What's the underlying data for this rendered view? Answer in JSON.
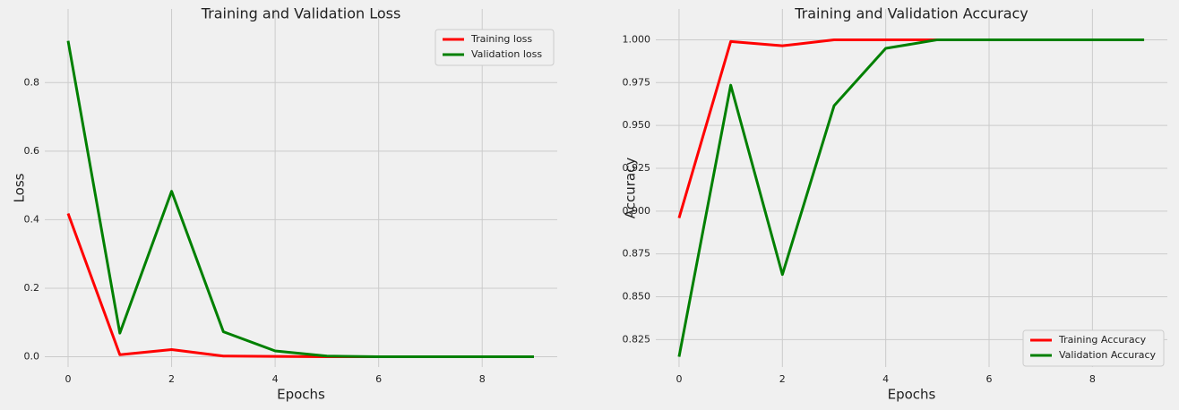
{
  "chart_data": [
    {
      "type": "line",
      "title": "Training and Validation Loss",
      "xlabel": "Epochs",
      "ylabel": "Loss",
      "x": [
        0,
        1,
        2,
        3,
        4,
        5,
        6,
        7,
        8,
        9
      ],
      "series": [
        {
          "name": "Training loss",
          "color": "#ff0000",
          "values": [
            0.418,
            0.006,
            0.021,
            0.002,
            0.001,
            0.0,
            0.0,
            0.0,
            0.0,
            0.0
          ]
        },
        {
          "name": "Validation loss",
          "color": "#008000",
          "values": [
            0.922,
            0.069,
            0.483,
            0.073,
            0.017,
            0.002,
            0.0,
            0.0,
            0.0,
            0.0
          ]
        }
      ],
      "xlim": [
        -0.45,
        9.45
      ],
      "xticks": [
        0,
        2,
        4,
        6,
        8
      ],
      "ylim": [
        -0.03,
        1.015
      ],
      "yticks": [
        {
          "value": 0,
          "label": "0.0"
        },
        0.2,
        0.4,
        0.6,
        0.8
      ],
      "grid": true,
      "legend": "upper-right"
    },
    {
      "type": "line",
      "title": "Training and Validation Accuracy",
      "xlabel": "Epochs",
      "ylabel": "Accuracy",
      "x": [
        0,
        1,
        2,
        3,
        4,
        5,
        6,
        7,
        8,
        9
      ],
      "series": [
        {
          "name": "Training Accuracy",
          "color": "#ff0000",
          "values": [
            0.896,
            0.999,
            0.9965,
            1.0,
            1.0,
            1.0,
            1.0,
            1.0,
            1.0,
            1.0
          ]
        },
        {
          "name": "Validation Accuracy",
          "color": "#008000",
          "values": [
            0.815,
            0.9735,
            0.863,
            0.9615,
            0.995,
            1.0,
            1.0,
            1.0,
            1.0,
            1.0
          ]
        }
      ],
      "xlim": [
        -0.45,
        9.45
      ],
      "xticks": [
        0,
        2,
        4,
        6,
        8
      ],
      "ylim": [
        0.809,
        1.018
      ],
      "yticks": [
        0.825,
        {
          "value": 0.85,
          "label": "0.850"
        },
        0.875,
        {
          "value": 0.9,
          "label": "0.900"
        },
        0.925,
        {
          "value": 0.95,
          "label": "0.950"
        },
        0.975,
        {
          "value": 1.0,
          "label": "1.000"
        }
      ],
      "grid": true,
      "legend": "lower-right"
    }
  ]
}
